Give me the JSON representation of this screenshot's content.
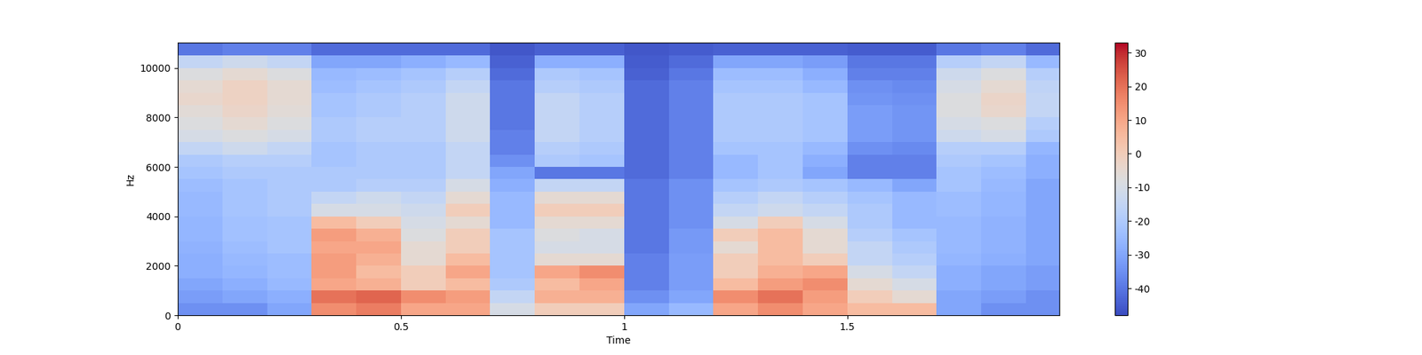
{
  "chart_data": {
    "type": "spectrogram",
    "x_label": "Time",
    "y_label": "Hz",
    "xlim": [
      0,
      1.975
    ],
    "xticks": [
      0,
      0.5,
      1,
      1.5
    ],
    "ylim": [
      0,
      11025
    ],
    "yticks": [
      0,
      2000,
      4000,
      6000,
      8000,
      10000
    ],
    "color": "coolwarm",
    "color_range": [
      -48,
      33
    ],
    "color_ticks": [
      -40,
      -30,
      -20,
      -10,
      0,
      10,
      20,
      30
    ],
    "x_edges": [
      0,
      0.1,
      0.2,
      0.3,
      0.4,
      0.5,
      0.6,
      0.7,
      0.8,
      0.9,
      1.0,
      1.1,
      1.2,
      1.3,
      1.4,
      1.5,
      1.6,
      1.7,
      1.8,
      1.9,
      1.975
    ],
    "y_edges": [
      0,
      500,
      1000,
      1500,
      2000,
      2500,
      3000,
      3500,
      4000,
      4500,
      5000,
      5500,
      6000,
      6500,
      7000,
      7500,
      8000,
      8500,
      9000,
      9500,
      10000,
      10500,
      11025
    ],
    "cells": [
      [
        -35,
        -35,
        -30,
        15,
        18,
        10,
        10,
        -10,
        0,
        0,
        -30,
        -25,
        10,
        15,
        10,
        5,
        5,
        -30,
        -35,
        -35
      ],
      [
        -32,
        -30,
        -28,
        20,
        22,
        15,
        12,
        -15,
        8,
        8,
        -35,
        -30,
        15,
        20,
        12,
        0,
        -5,
        -30,
        -32,
        -35
      ],
      [
        -30,
        -28,
        -25,
        10,
        8,
        0,
        5,
        -20,
        5,
        10,
        -38,
        -32,
        5,
        12,
        15,
        -5,
        -10,
        -28,
        -30,
        -32
      ],
      [
        -28,
        -26,
        -24,
        12,
        5,
        0,
        10,
        -22,
        10,
        15,
        -38,
        -32,
        0,
        8,
        10,
        -10,
        -15,
        -28,
        -30,
        -32
      ],
      [
        -28,
        -25,
        -24,
        12,
        8,
        -5,
        5,
        -22,
        -5,
        -5,
        -38,
        -32,
        0,
        5,
        0,
        -15,
        -18,
        -26,
        -28,
        -30
      ],
      [
        -27,
        -24,
        -22,
        10,
        10,
        -5,
        0,
        -22,
        -10,
        -10,
        -40,
        -33,
        -5,
        5,
        -5,
        -15,
        -20,
        -25,
        -27,
        -30
      ],
      [
        -26,
        -23,
        -22,
        12,
        8,
        -8,
        0,
        -22,
        -8,
        -10,
        -40,
        -33,
        0,
        5,
        -5,
        -18,
        -22,
        -25,
        -27,
        -30
      ],
      [
        -26,
        -23,
        -22,
        5,
        0,
        -10,
        -5,
        -25,
        -5,
        -5,
        -40,
        -35,
        -10,
        0,
        -10,
        -20,
        -25,
        -25,
        -27,
        -30
      ],
      [
        -25,
        -22,
        -20,
        -10,
        -10,
        -12,
        0,
        -25,
        0,
        0,
        -40,
        -35,
        -15,
        -12,
        -15,
        -20,
        -25,
        -24,
        -26,
        -30
      ],
      [
        -25,
        -22,
        -20,
        -15,
        -12,
        -15,
        -5,
        -25,
        -5,
        -5,
        -40,
        -35,
        -18,
        -15,
        -18,
        -22,
        -25,
        -24,
        -26,
        -30
      ],
      [
        -24,
        -22,
        -20,
        -20,
        -18,
        -18,
        -10,
        -28,
        -15,
        -15,
        -40,
        -35,
        -22,
        -20,
        -22,
        -25,
        -30,
        -22,
        -25,
        -30
      ],
      [
        -22,
        -20,
        -20,
        -20,
        -20,
        -20,
        -15,
        -30,
        -40,
        -40,
        -42,
        -38,
        -25,
        -22,
        -30,
        -38,
        -38,
        -22,
        -24,
        -28
      ],
      [
        -20,
        -18,
        -18,
        -22,
        -20,
        -20,
        -15,
        -35,
        -20,
        -22,
        -42,
        -38,
        -25,
        -22,
        -28,
        -38,
        -38,
        -20,
        -22,
        -28
      ],
      [
        -15,
        -12,
        -15,
        -22,
        -20,
        -20,
        -15,
        -38,
        -18,
        -20,
        -42,
        -38,
        -22,
        -22,
        -25,
        -35,
        -36,
        -18,
        -18,
        -26
      ],
      [
        -10,
        -8,
        -10,
        -20,
        -18,
        -18,
        -12,
        -38,
        -15,
        -18,
        -42,
        -38,
        -20,
        -20,
        -22,
        -32,
        -34,
        -12,
        -10,
        -20
      ],
      [
        -8,
        -5,
        -8,
        -20,
        -18,
        -18,
        -12,
        -40,
        -15,
        -18,
        -42,
        -38,
        -20,
        -20,
        -22,
        -32,
        -34,
        -10,
        -8,
        -18
      ],
      [
        -6,
        -3,
        -6,
        -22,
        -20,
        -18,
        -12,
        -40,
        -15,
        -18,
        -42,
        -38,
        -20,
        -20,
        -22,
        -32,
        -34,
        -8,
        -4,
        -15
      ],
      [
        -4,
        -2,
        -5,
        -22,
        -20,
        -18,
        -12,
        -40,
        -15,
        -18,
        -42,
        -38,
        -20,
        -20,
        -22,
        -34,
        -35,
        -8,
        -3,
        -15
      ],
      [
        -5,
        -2,
        -5,
        -24,
        -22,
        -20,
        -15,
        -40,
        -18,
        -20,
        -42,
        -38,
        -22,
        -22,
        -25,
        -35,
        -36,
        -10,
        -5,
        -16
      ],
      [
        -8,
        -5,
        -8,
        -25,
        -24,
        -22,
        -18,
        -42,
        -20,
        -22,
        -44,
        -40,
        -24,
        -24,
        -28,
        -38,
        -38,
        -12,
        -8,
        -18
      ],
      [
        -15,
        -12,
        -15,
        -30,
        -30,
        -28,
        -25,
        -44,
        -28,
        -28,
        -45,
        -42,
        -30,
        -30,
        -32,
        -40,
        -40,
        -18,
        -15,
        -25
      ],
      [
        -40,
        -38,
        -38,
        -42,
        -42,
        -42,
        -42,
        -46,
        -44,
        -44,
        -46,
        -45,
        -44,
        -44,
        -44,
        -45,
        -45,
        -40,
        -38,
        -42
      ]
    ]
  }
}
